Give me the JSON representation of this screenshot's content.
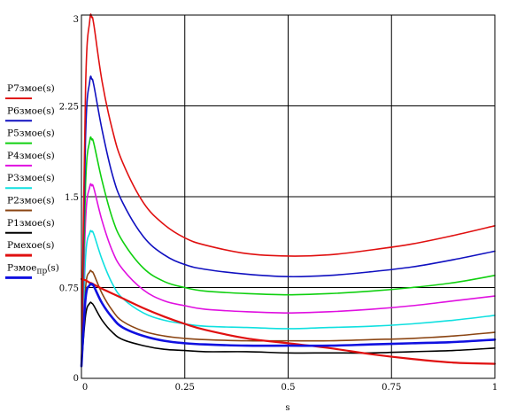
{
  "chart_data": {
    "type": "line",
    "title": "",
    "xlabel": "s",
    "ylabel": "",
    "xlim": [
      0,
      1
    ],
    "ylim": [
      0,
      3
    ],
    "x_ticks": [
      0,
      0.25,
      0.5,
      0.75,
      1
    ],
    "x_tick_labels": [
      "0",
      "0.25",
      "0.5",
      "0.75",
      "1"
    ],
    "y_ticks": [
      0,
      0.75,
      1.5,
      2.25,
      3
    ],
    "y_tick_labels": [
      "0",
      "0.75",
      "1.5",
      "2.25",
      "3"
    ],
    "grid": true,
    "legend_placement": "left-outside",
    "x": [
      0,
      0.01,
      0.02,
      0.025,
      0.03,
      0.05,
      0.075,
      0.1,
      0.15,
      0.2,
      0.25,
      0.3,
      0.4,
      0.5,
      0.6,
      0.7,
      0.8,
      0.9,
      1.0
    ],
    "series": [
      {
        "name": "P7змое(s)",
        "color": "#e01010",
        "width": 1.6,
        "values": [
          0.1,
          2.4,
          2.95,
          2.98,
          2.92,
          2.45,
          2.05,
          1.78,
          1.45,
          1.27,
          1.16,
          1.1,
          1.03,
          1.01,
          1.02,
          1.06,
          1.11,
          1.18,
          1.26
        ]
      },
      {
        "name": "P6змое(s)",
        "color": "#1010c0",
        "width": 1.6,
        "values": [
          0.1,
          2.0,
          2.45,
          2.47,
          2.42,
          2.05,
          1.68,
          1.45,
          1.17,
          1.02,
          0.94,
          0.9,
          0.86,
          0.84,
          0.85,
          0.88,
          0.92,
          0.98,
          1.05
        ]
      },
      {
        "name": "P5змое(s)",
        "color": "#10d010",
        "width": 1.6,
        "values": [
          0.1,
          1.6,
          1.96,
          1.97,
          1.94,
          1.63,
          1.32,
          1.13,
          0.91,
          0.8,
          0.75,
          0.72,
          0.7,
          0.69,
          0.7,
          0.72,
          0.75,
          0.79,
          0.85
        ]
      },
      {
        "name": "P4змое(s)",
        "color": "#e010e0",
        "width": 1.6,
        "values": [
          0.1,
          1.3,
          1.58,
          1.59,
          1.57,
          1.3,
          1.05,
          0.9,
          0.73,
          0.64,
          0.6,
          0.57,
          0.55,
          0.54,
          0.55,
          0.57,
          0.6,
          0.64,
          0.68
        ]
      },
      {
        "name": "P3змое(s)",
        "color": "#10e0e0",
        "width": 1.6,
        "values": [
          0.1,
          1.0,
          1.2,
          1.21,
          1.19,
          0.98,
          0.78,
          0.66,
          0.54,
          0.48,
          0.45,
          0.43,
          0.42,
          0.41,
          0.42,
          0.43,
          0.45,
          0.48,
          0.52
        ]
      },
      {
        "name": "P2змое(s)",
        "color": "#8b4513",
        "width": 1.6,
        "values": [
          0.1,
          0.75,
          0.88,
          0.88,
          0.86,
          0.7,
          0.56,
          0.47,
          0.39,
          0.35,
          0.33,
          0.32,
          0.31,
          0.31,
          0.31,
          0.32,
          0.33,
          0.35,
          0.38
        ]
      },
      {
        "name": "P1змое(s)",
        "color": "#000000",
        "width": 1.6,
        "values": [
          0.1,
          0.52,
          0.62,
          0.62,
          0.6,
          0.48,
          0.38,
          0.32,
          0.27,
          0.24,
          0.23,
          0.22,
          0.22,
          0.21,
          0.21,
          0.21,
          0.22,
          0.23,
          0.25
        ]
      },
      {
        "name": "Pмехое(s)",
        "color": "#e01010",
        "width": 2.2,
        "values": [
          0.82,
          0.81,
          0.79,
          0.785,
          0.775,
          0.74,
          0.7,
          0.66,
          0.58,
          0.51,
          0.45,
          0.4,
          0.33,
          0.29,
          0.25,
          0.2,
          0.16,
          0.13,
          0.12
        ]
      },
      {
        "name": "Pзмое",
        "name_sub": "пр",
        "name_suffix": "(s)",
        "color": "#1010e0",
        "width": 2.6,
        "values": [
          0.1,
          0.66,
          0.77,
          0.775,
          0.76,
          0.62,
          0.5,
          0.42,
          0.35,
          0.31,
          0.29,
          0.28,
          0.27,
          0.27,
          0.27,
          0.28,
          0.29,
          0.3,
          0.32
        ]
      }
    ]
  }
}
